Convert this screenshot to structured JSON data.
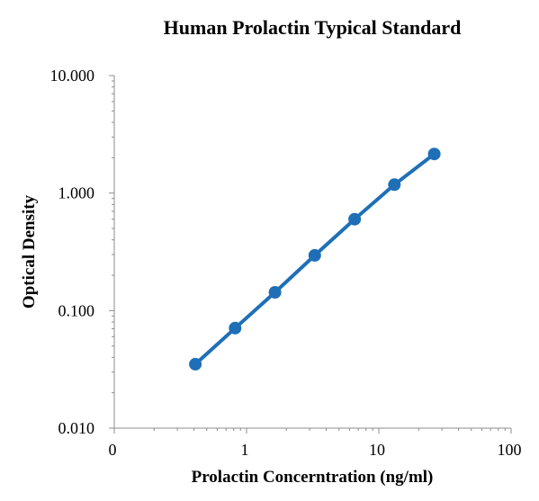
{
  "chart_data": {
    "type": "line",
    "title": "Human Prolactin Typical Standard",
    "xlabel": "Prolactin Concerntration (ng/ml)",
    "ylabel": "Optical Density",
    "x_scale": "log",
    "y_scale": "log",
    "xlim": [
      0.1,
      100
    ],
    "ylim": [
      0.01,
      10
    ],
    "x_tick_labels": [
      "0",
      "1",
      "10",
      "100"
    ],
    "y_tick_labels": [
      "0.010",
      "0.100",
      "1.000",
      "10.000"
    ],
    "grid": false,
    "legend": "none",
    "series": [
      {
        "color": "#1f6fb7",
        "x": [
          0.41,
          0.82,
          1.64,
          3.28,
          6.56,
          13.12,
          26.25
        ],
        "y": [
          0.035,
          0.071,
          0.143,
          0.295,
          0.6,
          1.18,
          2.15
        ]
      }
    ]
  }
}
